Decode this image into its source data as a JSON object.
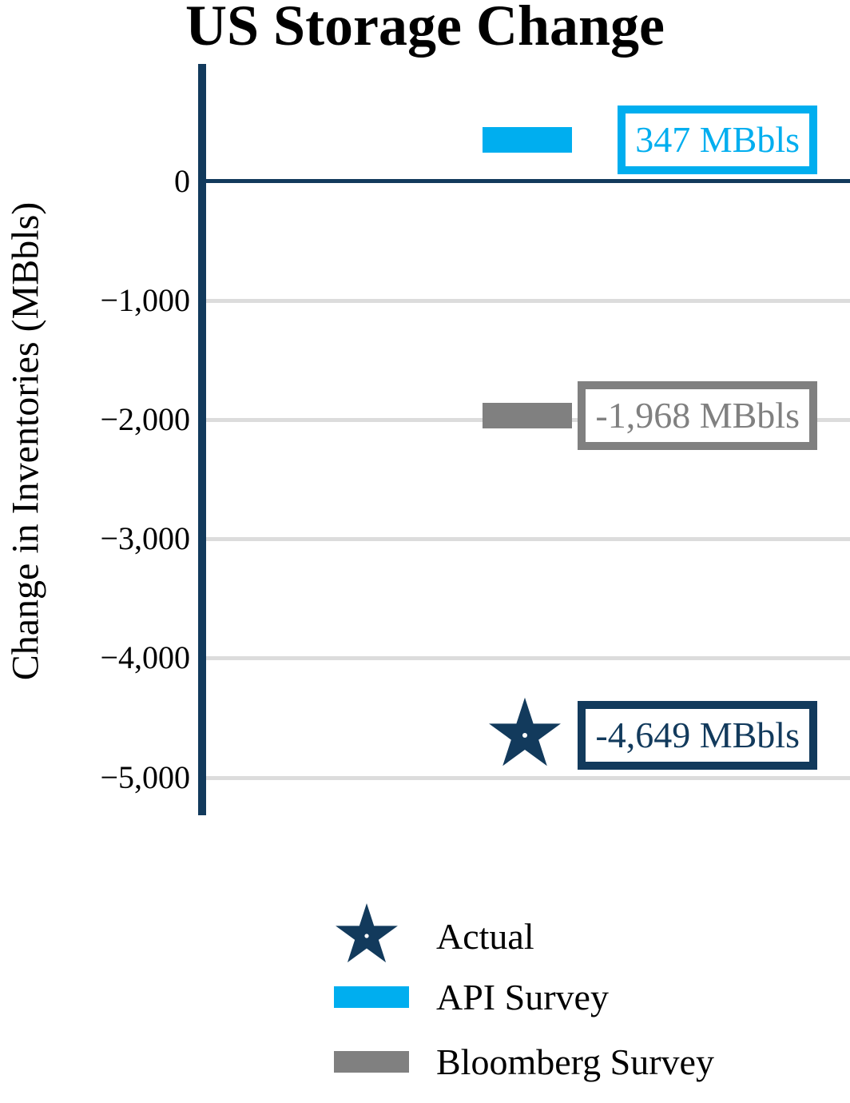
{
  "chart_data": {
    "type": "bar",
    "title": "US Storage Change",
    "ylabel": "Change in Inventories (MBbls)",
    "ylim": [
      -5320,
      980
    ],
    "yticks": [
      0,
      -1000,
      -2000,
      -3000,
      -4000,
      -5000
    ],
    "ytick_labels": [
      "0",
      "−1,000",
      "−2,000",
      "−3,000",
      "−4,000",
      "−5,000"
    ],
    "grid": "horizontal",
    "gridline_color": "#DCDCDC",
    "axis_color": "#123A5C",
    "zero_line_color": "#123A5C",
    "series": [
      {
        "name": "Actual",
        "marker": "star",
        "color": "#123A5C",
        "value": -4649,
        "annotation": "-4,649 MBbls"
      },
      {
        "name": "API Survey",
        "marker": "bar",
        "color": "#00AEEF",
        "value": 347,
        "annotation": "347 MBbls"
      },
      {
        "name": "Bloomberg Survey",
        "marker": "bar",
        "color": "#808080",
        "value": -1968,
        "annotation": "-1,968 MBbls"
      }
    ],
    "legend": {
      "position": "bottom-center",
      "entries": [
        "Actual",
        "API Survey",
        "Bloomberg Survey"
      ]
    }
  }
}
